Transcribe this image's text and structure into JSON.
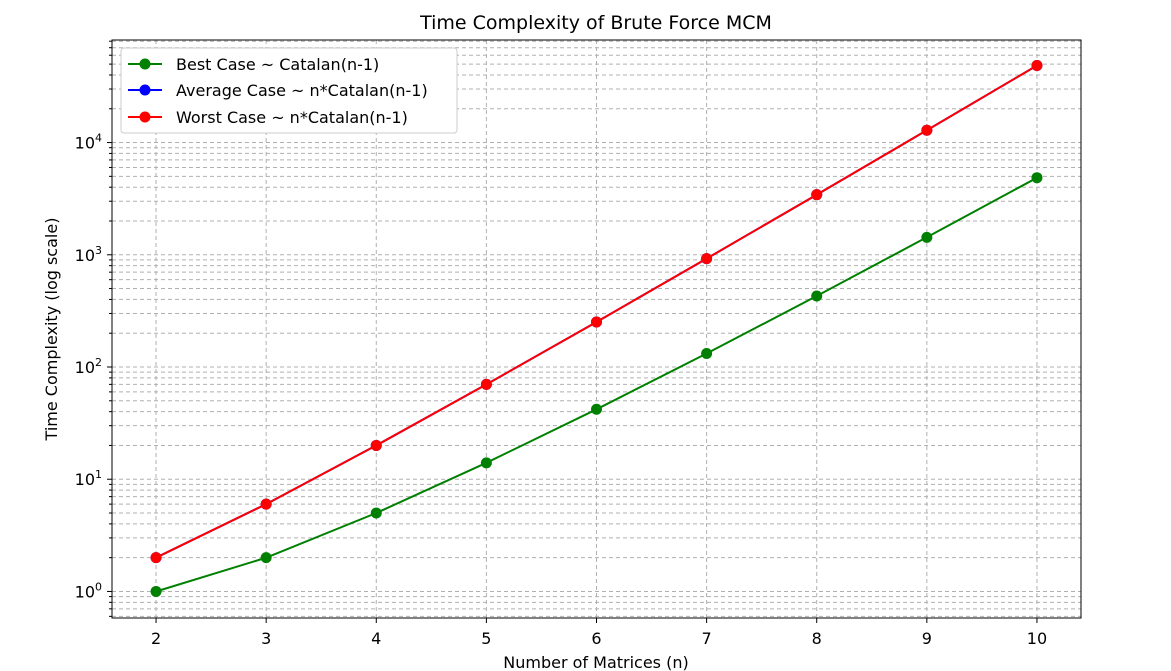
{
  "chart_data": {
    "type": "line",
    "title": "Time Complexity of Brute Force MCM",
    "xlabel": "Number of Matrices (n)",
    "ylabel": "Time Complexity (log scale)",
    "x": [
      2,
      3,
      4,
      5,
      6,
      7,
      8,
      9,
      10
    ],
    "xlim": [
      1.6,
      10.4
    ],
    "ylim": [
      0.58,
      82000
    ],
    "yscale": "log",
    "grid": true,
    "legend_position": "top-left",
    "x_ticks": [
      "2",
      "3",
      "4",
      "5",
      "6",
      "7",
      "8",
      "9",
      "10"
    ],
    "y_ticks": [
      {
        "value": 1,
        "base": "10",
        "exp": "0"
      },
      {
        "value": 10,
        "base": "10",
        "exp": "1"
      },
      {
        "value": 100,
        "base": "10",
        "exp": "2"
      },
      {
        "value": 1000,
        "base": "10",
        "exp": "3"
      },
      {
        "value": 10000,
        "base": "10",
        "exp": "4"
      }
    ],
    "series": [
      {
        "name": "Best Case ~ Catalan(n-1)",
        "color": "#008000",
        "values": [
          1,
          2,
          5,
          14,
          42,
          132,
          429,
          1430,
          4862
        ]
      },
      {
        "name": "Average Case ~ n*Catalan(n-1)",
        "color": "#0000ff",
        "values": [
          2,
          6,
          20,
          70,
          252,
          924,
          3432,
          12870,
          48620
        ]
      },
      {
        "name": "Worst Case ~ n*Catalan(n-1)",
        "color": "#ff0000",
        "values": [
          2,
          6,
          20,
          70,
          252,
          924,
          3432,
          12870,
          48620
        ]
      }
    ]
  }
}
